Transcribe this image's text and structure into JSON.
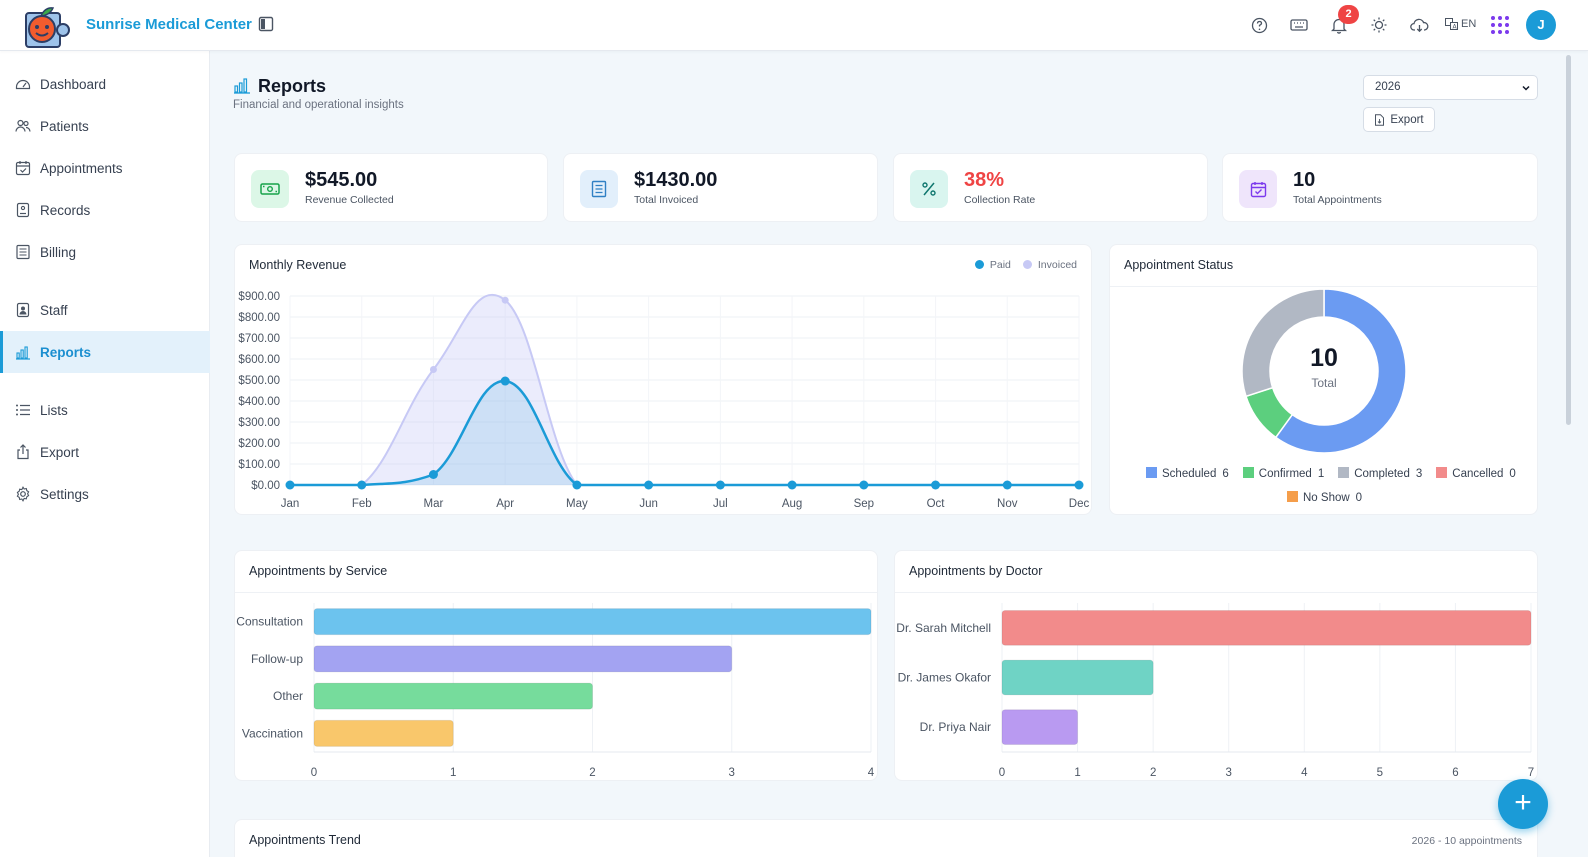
{
  "header": {
    "brand": "Sunrise Medical Center",
    "notification_count": "2",
    "language": "EN",
    "avatar_initial": "J"
  },
  "sidebar": {
    "items": [
      {
        "label": "Dashboard",
        "icon": "dashboard-icon"
      },
      {
        "label": "Patients",
        "icon": "users-icon"
      },
      {
        "label": "Appointments",
        "icon": "calendar-icon"
      },
      {
        "label": "Records",
        "icon": "records-icon"
      },
      {
        "label": "Billing",
        "icon": "billing-icon"
      },
      {
        "label": "Staff",
        "icon": "staff-icon"
      },
      {
        "label": "Reports",
        "icon": "chart-icon",
        "active": true
      },
      {
        "label": "Lists",
        "icon": "list-icon"
      },
      {
        "label": "Export",
        "icon": "export-icon"
      },
      {
        "label": "Settings",
        "icon": "gear-icon"
      }
    ]
  },
  "page": {
    "title": "Reports",
    "subtitle": "Financial and operational insights",
    "year": "2026",
    "export_label": "Export"
  },
  "kpis": [
    {
      "value": "$545.00",
      "label": "Revenue Collected",
      "icon": "cash-icon",
      "bg": "#dcf7e7",
      "fg": "#16a34a",
      "color": "#111827"
    },
    {
      "value": "$1430.00",
      "label": "Total Invoiced",
      "icon": "invoice-icon",
      "bg": "#e2effb",
      "fg": "#2f80c4",
      "color": "#111827"
    },
    {
      "value": "38%",
      "label": "Collection Rate",
      "icon": "percent-icon",
      "bg": "#d9f5ef",
      "fg": "#0f766e",
      "color": "#ef4444"
    },
    {
      "value": "10",
      "label": "Total Appointments",
      "icon": "calendar-check-icon",
      "bg": "#efe5fb",
      "fg": "#7c3aed",
      "color": "#111827"
    }
  ],
  "revenue_card": {
    "title": "Monthly Revenue",
    "legend_paid": "Paid",
    "legend_invoiced": "Invoiced"
  },
  "status_card": {
    "title": "Appointment Status",
    "center_value": "10",
    "center_label": "Total"
  },
  "service_card": {
    "title": "Appointments by Service"
  },
  "doctor_card": {
    "title": "Appointments by Doctor"
  },
  "trend_card": {
    "title": "Appointments Trend",
    "meta": "2026 - 10 appointments"
  },
  "chart_data": [
    {
      "type": "area",
      "title": "Monthly Revenue",
      "categories": [
        "Jan",
        "Feb",
        "Mar",
        "Apr",
        "May",
        "Jun",
        "Jul",
        "Aug",
        "Sep",
        "Oct",
        "Nov",
        "Dec"
      ],
      "series": [
        {
          "name": "Paid",
          "values": [
            0,
            0,
            50,
            495,
            0,
            0,
            0,
            0,
            0,
            0,
            0,
            0
          ],
          "color": "#1b9bd7"
        },
        {
          "name": "Invoiced",
          "values": [
            0,
            0,
            550,
            880,
            0,
            0,
            0,
            0,
            0,
            0,
            0,
            0
          ],
          "color": "#c7c9f5"
        }
      ],
      "ylim": [
        0,
        900
      ],
      "yticks": [
        "$0.00",
        "$100.00",
        "$200.00",
        "$300.00",
        "$400.00",
        "$500.00",
        "$600.00",
        "$700.00",
        "$800.00",
        "$900.00"
      ],
      "grid": true,
      "legend": "top-right"
    },
    {
      "type": "pie",
      "title": "Appointment Status",
      "slices": [
        {
          "name": "Scheduled",
          "value": 6,
          "color": "#6b9bf2"
        },
        {
          "name": "Confirmed",
          "value": 1,
          "color": "#5ccf7e"
        },
        {
          "name": "Completed",
          "value": 3,
          "color": "#b1b8c4"
        },
        {
          "name": "Cancelled",
          "value": 0,
          "color": "#f28b8b"
        },
        {
          "name": "No Show",
          "value": 0,
          "color": "#f59e4b"
        }
      ],
      "legend": "bottom"
    },
    {
      "type": "bar",
      "title": "Appointments by Service",
      "orientation": "horizontal",
      "categories": [
        "Consultation",
        "Follow-up",
        "Other",
        "Vaccination"
      ],
      "values": [
        4,
        3,
        2,
        1
      ],
      "colors": [
        "#6cc3ee",
        "#a3a3f2",
        "#76dc9c",
        "#f9c76b"
      ],
      "xlim": [
        0,
        4
      ],
      "xticks": [
        "0",
        "1",
        "2",
        "3",
        "4"
      ]
    },
    {
      "type": "bar",
      "title": "Appointments by Doctor",
      "orientation": "horizontal",
      "categories": [
        "Dr. Sarah Mitchell",
        "Dr. James Okafor",
        "Dr. Priya Nair"
      ],
      "values": [
        7,
        2,
        1
      ],
      "colors": [
        "#f28b8b",
        "#6fd3c5",
        "#b99af1"
      ],
      "xlim": [
        0,
        7
      ],
      "xticks": [
        "0",
        "1",
        "2",
        "3",
        "4",
        "5",
        "6",
        "7"
      ]
    }
  ]
}
